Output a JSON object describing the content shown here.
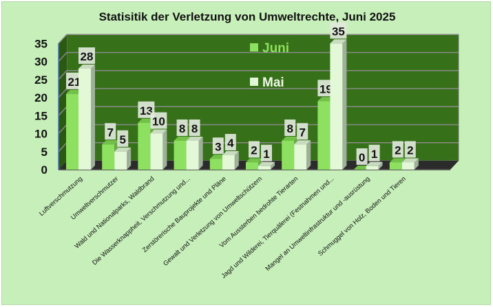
{
  "chart_data": {
    "type": "bar",
    "title": "Statisitik der Verletzung von Umweltrechte, Juni 2025",
    "categories": [
      "Luftverschmutzung",
      "Umweltverschmutzer",
      "Wald und Nationalparks, Waldbrand",
      "Die Wasserknappheit, Verschmutzung und...",
      "Zerstörerische Bauprojekte und Pläne",
      "Gewalt und Verletzung von Umweltschützern",
      "Vom Aussterben bedrohte Tierarten",
      "Jagd und Wilderei, Tierquälerei (Festnahmen und...",
      "Mangel an Umweltinfrastruktur und -ausrüstung",
      "Schmuggel von Holz, Boden und Tieren"
    ],
    "series": [
      {
        "name": "Juni",
        "color": "#8ee060",
        "values": [
          21,
          7,
          13,
          8,
          3,
          2,
          8,
          19,
          0,
          2
        ]
      },
      {
        "name": "Mai",
        "color": "#e2f8d6",
        "values": [
          28,
          5,
          10,
          8,
          4,
          1,
          7,
          35,
          1,
          2
        ]
      }
    ],
    "yticks": [
      "0",
      "5",
      "10",
      "15",
      "20",
      "25",
      "30",
      "35"
    ],
    "ylim": [
      0,
      35
    ],
    "grid": true,
    "legend": "top-center (inside plot)",
    "xlabel": "",
    "ylabel": ""
  }
}
